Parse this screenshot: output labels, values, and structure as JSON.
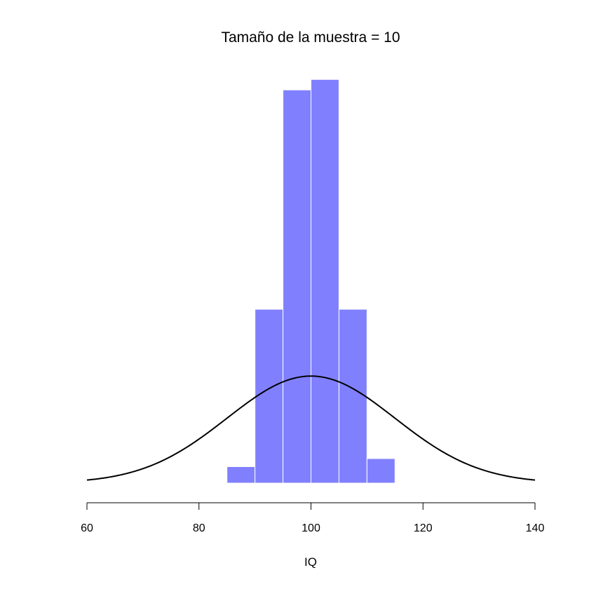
{
  "chart_data": {
    "type": "bar",
    "title": "Tamaño de la muestra = 10",
    "xlabel": "IQ",
    "ylabel": "",
    "xlim": [
      60,
      140
    ],
    "ylim": [
      0,
      0.1
    ],
    "x_ticks": [
      60,
      80,
      100,
      120,
      140
    ],
    "x_tick_labels": [
      "60",
      "80",
      "100",
      "120",
      "140"
    ],
    "y_axis_shown": false,
    "grid": false,
    "legend": "none",
    "histogram": {
      "bin_edges": [
        85,
        90,
        95,
        100,
        105,
        110,
        115
      ],
      "density": [
        0.0041,
        0.0432,
        0.0977,
        0.1003,
        0.0432,
        0.0061
      ],
      "fill_color": "#8080ff",
      "edge_color": "#ffffff"
    },
    "density_curve": {
      "distribution": "normal",
      "mean": 100,
      "sd": 15,
      "color": "#000000"
    }
  }
}
